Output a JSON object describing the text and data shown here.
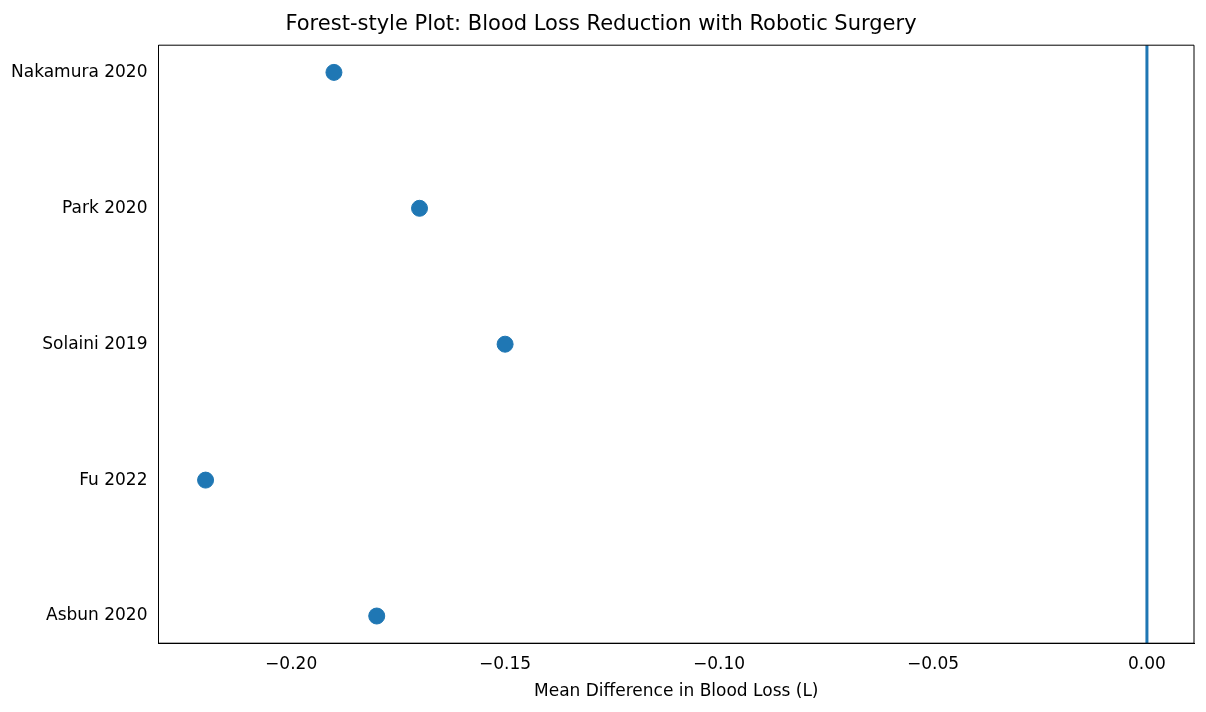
{
  "chart_data": {
    "type": "scatter",
    "title": "Forest-style Plot: Blood Loss Reduction with Robotic Surgery",
    "xlabel": "Mean Difference in Blood Loss (L)",
    "orientation": "horizontal",
    "categories": [
      "Nakamura 2020",
      "Park 2020",
      "Solaini 2019",
      "Fu 2022",
      "Asbun 2020"
    ],
    "values": [
      -0.19,
      -0.17,
      -0.15,
      -0.22,
      -0.18
    ],
    "color": "#1f77b4",
    "marker": "circle",
    "grid": false,
    "legend": false,
    "xlim": [
      -0.231,
      0.011
    ],
    "xticks": [
      {
        "value": -0.2,
        "label": "−0.20"
      },
      {
        "value": -0.15,
        "label": "−0.15"
      },
      {
        "value": -0.1,
        "label": "−0.10"
      },
      {
        "value": -0.05,
        "label": "−0.05"
      },
      {
        "value": 0,
        "label": "0.00"
      }
    ],
    "ref_lines": [
      {
        "axis": "x",
        "value": 0,
        "color": "#1f77b4"
      }
    ]
  }
}
